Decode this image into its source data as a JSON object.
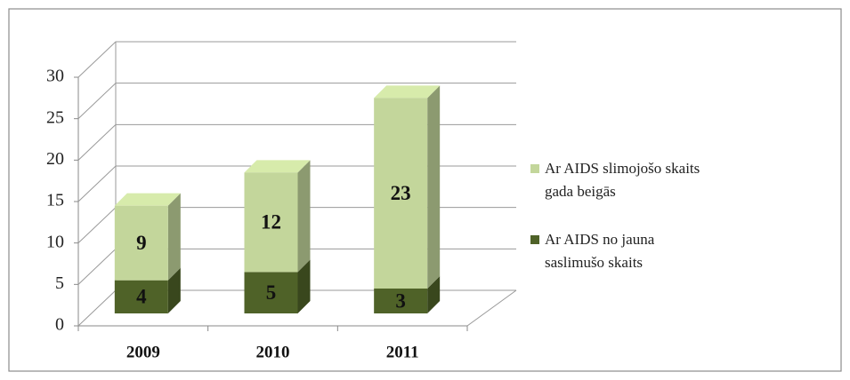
{
  "chart_data": {
    "type": "bar3d_stacked",
    "categories": [
      "2009",
      "2010",
      "2011"
    ],
    "series": [
      {
        "name": "Ar AIDS no jauna saslimušo skaits",
        "color": "#4f6228",
        "values": [
          4,
          5,
          3
        ]
      },
      {
        "name": "Ar AIDS slimojošo skaits gada beigās",
        "color": "#c3d69b",
        "values": [
          9,
          12,
          23
        ]
      }
    ],
    "ylim": [
      0,
      30
    ],
    "yticks": [
      0,
      5,
      10,
      15,
      20,
      25,
      30
    ],
    "grid": true,
    "legend": "right"
  }
}
